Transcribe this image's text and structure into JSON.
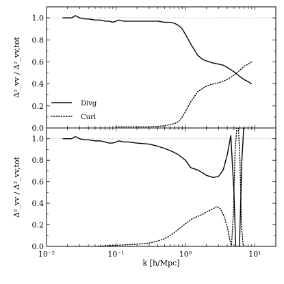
{
  "chart_data": [
    {
      "type": "line",
      "panel": "top",
      "xscale": "log",
      "xlim": [
        0.01,
        20
      ],
      "ylim": [
        0.0,
        1.1
      ],
      "ylabel": "Δ²_vv / Δ²_vv,tot",
      "y_ticks": [
        "0.0",
        "0.2",
        "0.4",
        "0.6",
        "0.8",
        "1.0"
      ],
      "reference_line": {
        "y": 1.0,
        "style": "dotted",
        "color": "#b3b3b3"
      },
      "legend": {
        "placement": "lower-left",
        "entries": [
          {
            "name": "Divg",
            "style": "solid"
          },
          {
            "name": "Curl",
            "style": "dotted"
          }
        ]
      },
      "series": [
        {
          "name": "Divg",
          "style": "solid",
          "x": [
            0.017,
            0.02,
            0.023,
            0.026,
            0.03,
            0.035,
            0.04,
            0.05,
            0.06,
            0.07,
            0.08,
            0.09,
            0.1,
            0.11,
            0.13,
            0.15,
            0.2,
            0.3,
            0.4,
            0.5,
            0.6,
            0.7,
            0.8,
            0.9,
            1.0,
            1.2,
            1.5,
            1.8,
            2.0,
            2.5,
            3.0,
            3.5,
            4.0,
            5.0,
            6.0,
            7.0,
            8.0,
            9.0
          ],
          "y": [
            1.0,
            1.0,
            1.0,
            1.02,
            1.0,
            0.99,
            0.99,
            0.98,
            0.98,
            0.97,
            0.97,
            0.96,
            0.97,
            0.98,
            0.97,
            0.97,
            0.97,
            0.97,
            0.97,
            0.96,
            0.96,
            0.95,
            0.93,
            0.9,
            0.85,
            0.76,
            0.66,
            0.62,
            0.61,
            0.59,
            0.58,
            0.57,
            0.55,
            0.51,
            0.47,
            0.44,
            0.42,
            0.4
          ]
        },
        {
          "name": "Curl",
          "style": "dotted",
          "x": [
            0.1,
            0.15,
            0.2,
            0.3,
            0.4,
            0.5,
            0.6,
            0.7,
            0.8,
            0.9,
            1.0,
            1.2,
            1.5,
            2.0,
            2.5,
            3.0,
            4.0,
            5.0,
            6.0,
            7.0,
            8.0,
            9.0
          ],
          "y": [
            0.01,
            0.01,
            0.01,
            0.01,
            0.015,
            0.02,
            0.03,
            0.04,
            0.06,
            0.1,
            0.15,
            0.24,
            0.33,
            0.38,
            0.4,
            0.41,
            0.44,
            0.48,
            0.52,
            0.56,
            0.58,
            0.6
          ]
        }
      ]
    },
    {
      "type": "line",
      "panel": "bottom",
      "xscale": "log",
      "xlim": [
        0.01,
        20
      ],
      "ylim": [
        0.0,
        1.1
      ],
      "xlabel": "k [h/Mpc]",
      "ylabel": "Δ²_vv / Δ²_vv,tot",
      "x_ticks": [
        "10⁻²",
        "10⁻¹",
        "10⁰",
        "10¹"
      ],
      "y_ticks": [
        "0.0",
        "0.2",
        "0.4",
        "0.6",
        "0.8",
        "1.0"
      ],
      "reference_line": {
        "y": 1.0,
        "style": "dotted",
        "color": "#b3b3b3"
      },
      "series": [
        {
          "name": "Divg",
          "style": "solid",
          "x": [
            0.017,
            0.02,
            0.023,
            0.026,
            0.03,
            0.035,
            0.04,
            0.05,
            0.06,
            0.07,
            0.08,
            0.09,
            0.1,
            0.11,
            0.13,
            0.15,
            0.2,
            0.3,
            0.4,
            0.5,
            0.6,
            0.7,
            0.8,
            1.0,
            1.2,
            1.5,
            1.8,
            2.0,
            2.5,
            3.0,
            3.5,
            4.0,
            4.5,
            5.0,
            5.3,
            5.6,
            6.0,
            6.5,
            6.9,
            7.2
          ],
          "y": [
            1.0,
            1.0,
            1.0,
            1.02,
            1.0,
            0.99,
            0.99,
            0.98,
            0.98,
            0.97,
            0.96,
            0.96,
            0.97,
            0.98,
            0.97,
            0.97,
            0.96,
            0.95,
            0.93,
            0.91,
            0.89,
            0.87,
            0.85,
            0.8,
            0.73,
            0.71,
            0.68,
            0.66,
            0.64,
            0.65,
            0.71,
            0.85,
            1.03,
            0.5,
            0.0,
            0.0,
            0.0,
            0.8,
            1.1,
            1.1
          ]
        },
        {
          "name": "Curl",
          "style": "dotted",
          "x": [
            0.05,
            0.07,
            0.1,
            0.15,
            0.2,
            0.3,
            0.4,
            0.5,
            0.6,
            0.7,
            0.8,
            1.0,
            1.2,
            1.5,
            1.8,
            2.0,
            2.5,
            2.8,
            3.2,
            3.6,
            4.0,
            4.3,
            4.6,
            4.9,
            5.2,
            5.5,
            5.8,
            6.1,
            6.4,
            6.8
          ],
          "y": [
            0.0,
            0.005,
            0.01,
            0.015,
            0.02,
            0.03,
            0.05,
            0.07,
            0.1,
            0.13,
            0.16,
            0.21,
            0.25,
            0.28,
            0.3,
            0.32,
            0.35,
            0.37,
            0.35,
            0.28,
            0.18,
            0.08,
            0.0,
            0.3,
            0.9,
            1.1,
            1.1,
            0.8,
            0.2,
            0.0
          ]
        }
      ]
    }
  ]
}
